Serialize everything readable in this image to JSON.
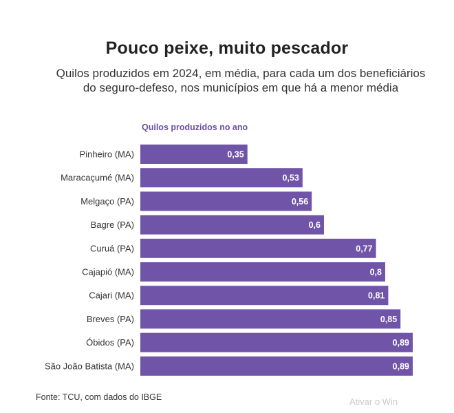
{
  "header": {
    "title": "Pouco peixe, muito pescador",
    "subtitle": "Quilos produzidos em 2024, em média, para cada um dos beneficiários do seguro-defeso, nos municípios em que há a menor média"
  },
  "footer": {
    "source": "Fonte: TCU, com dados do IBGE",
    "watermark": "Ativar o Win"
  },
  "colors": {
    "bar": "#6f54a8",
    "bar_label": "#ffffff",
    "category_text": "#333333"
  },
  "chart_data": {
    "type": "bar",
    "orientation": "horizontal",
    "series_label": "Quilos produzidos no ano",
    "categories": [
      "Pinheiro (MA)",
      "Maracaçumé (MA)",
      "Melgaço (PA)",
      "Bagre (PA)",
      "Curuá (PA)",
      "Cajapió (MA)",
      "Cajari (MA)",
      "Breves (PA)",
      "Óbidos (PA)",
      "São João Batista (MA)"
    ],
    "values": [
      0.35,
      0.53,
      0.56,
      0.6,
      0.77,
      0.8,
      0.81,
      0.85,
      0.89,
      0.89
    ],
    "value_labels": [
      "0,35",
      "0,53",
      "0,56",
      "0,6",
      "0,77",
      "0,8",
      "0,81",
      "0,85",
      "0,89",
      "0,89"
    ],
    "xlim": [
      0,
      0.89
    ],
    "grid": false,
    "legend": "none"
  }
}
